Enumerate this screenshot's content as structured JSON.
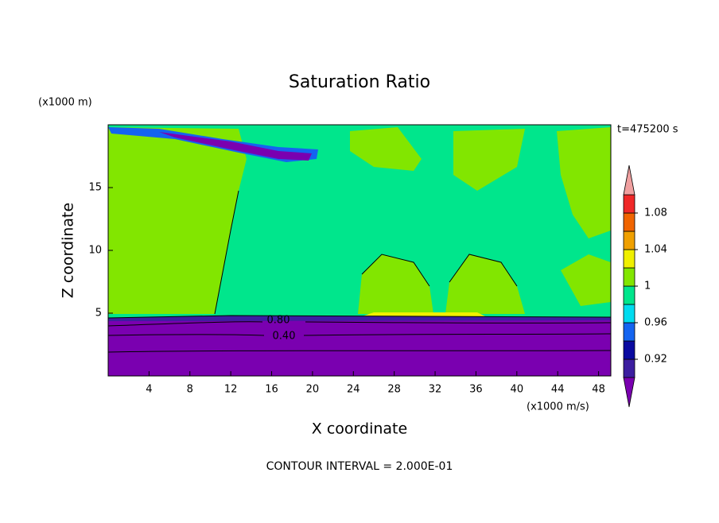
{
  "chart_data": {
    "type": "contour",
    "title": "Saturation Ratio",
    "x_label": "X coordinate",
    "y_label": "Z coordinate",
    "x_unit": "(x1000 m/s)",
    "y_unit": "(x1000 m)",
    "time_label": "t=475200 s",
    "footer": "CONTOUR INTERVAL = 2.000E-01",
    "xlim": [
      0,
      49.2
    ],
    "xticks": [
      4,
      8,
      12,
      16,
      20,
      24,
      28,
      32,
      36,
      40,
      44,
      48
    ],
    "ylim": [
      0,
      20
    ],
    "yticks": [
      5,
      10,
      15
    ],
    "contour_labels": [
      {
        "value": 0.8,
        "label": "0.80"
      },
      {
        "value": 0.4,
        "label": "0.40"
      }
    ],
    "colorbar": {
      "bounds": [
        0.9,
        0.92,
        0.94,
        0.96,
        0.98,
        1,
        1.02,
        1.04,
        1.06,
        1.08,
        1.1
      ],
      "colors": [
        "#7a00b0",
        "#3c1ea0",
        "#0a0aa0",
        "#1464f0",
        "#00dcf0",
        "#00e68c",
        "#82e600",
        "#f0f000",
        "#f0a000",
        "#f06400",
        "#f02828",
        "#f0a0a0"
      ],
      "ticks": [
        0.92,
        0.96,
        1,
        1.04,
        1.08
      ]
    }
  }
}
